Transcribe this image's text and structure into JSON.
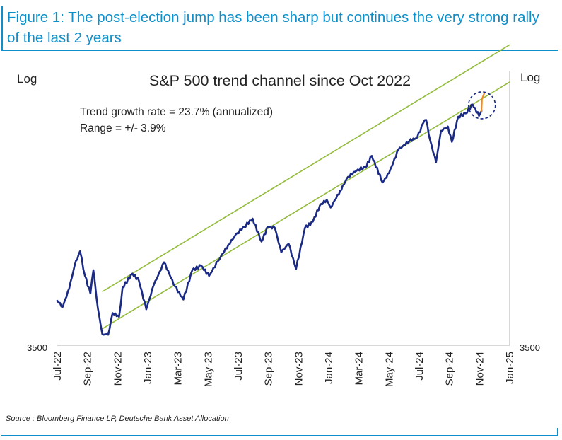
{
  "figure": {
    "title": "Figure 1: The post-election jump has been sharp but continues the very strong rally of the last 2 years",
    "source": "Source : Bloomberg Finance LP, Deutsche Bank Asset Allocation"
  },
  "chart_data": {
    "type": "line",
    "title": "S&P 500 trend channel since Oct 2022",
    "annotations": [
      "Trend growth rate = 23.7% (annualized)",
      "Range = +/- 3.9%"
    ],
    "left_axis_label": "Log",
    "right_axis_label": "Log",
    "y_scale": "log",
    "y_tick_labels": [
      "3500"
    ],
    "x_tick_labels": [
      "Jul-22",
      "Sep-22",
      "Nov-22",
      "Jan-23",
      "Mar-23",
      "May-23",
      "Jul-23",
      "Sep-23",
      "Nov-23",
      "Jan-24",
      "Mar-24",
      "May-24",
      "Jul-24",
      "Sep-24",
      "Nov-24",
      "Jan-25"
    ],
    "x_range": [
      "2022-07-01",
      "2025-01-01"
    ],
    "y_range": [
      3500,
      6300
    ],
    "grid": false,
    "series": [
      {
        "color": "#1a2a85",
        "points": [
          [
            "2022-07-01",
            3850
          ],
          [
            "2022-07-12",
            3800
          ],
          [
            "2022-07-25",
            3950
          ],
          [
            "2022-08-05",
            4150
          ],
          [
            "2022-08-16",
            4280
          ],
          [
            "2022-08-26",
            4060
          ],
          [
            "2022-09-06",
            3910
          ],
          [
            "2022-09-12",
            4110
          ],
          [
            "2022-09-21",
            3790
          ],
          [
            "2022-09-30",
            3585
          ],
          [
            "2022-10-12",
            3580
          ],
          [
            "2022-10-21",
            3750
          ],
          [
            "2022-11-03",
            3720
          ],
          [
            "2022-11-10",
            3960
          ],
          [
            "2022-11-30",
            4080
          ],
          [
            "2022-12-13",
            4020
          ],
          [
            "2022-12-28",
            3780
          ],
          [
            "2023-01-12",
            3980
          ],
          [
            "2023-02-02",
            4180
          ],
          [
            "2023-02-24",
            3970
          ],
          [
            "2023-03-13",
            3860
          ],
          [
            "2023-03-31",
            4110
          ],
          [
            "2023-04-18",
            4150
          ],
          [
            "2023-05-04",
            4060
          ],
          [
            "2023-05-22",
            4190
          ],
          [
            "2023-06-12",
            4340
          ],
          [
            "2023-06-30",
            4450
          ],
          [
            "2023-07-14",
            4510
          ],
          [
            "2023-07-31",
            4590
          ],
          [
            "2023-08-18",
            4370
          ],
          [
            "2023-08-31",
            4510
          ],
          [
            "2023-09-14",
            4500
          ],
          [
            "2023-09-27",
            4270
          ],
          [
            "2023-10-12",
            4350
          ],
          [
            "2023-10-27",
            4120
          ],
          [
            "2023-11-14",
            4500
          ],
          [
            "2023-11-30",
            4560
          ],
          [
            "2023-12-14",
            4720
          ],
          [
            "2023-12-28",
            4780
          ],
          [
            "2024-01-05",
            4700
          ],
          [
            "2024-01-24",
            4870
          ],
          [
            "2024-02-09",
            5020
          ],
          [
            "2024-02-29",
            5100
          ],
          [
            "2024-03-15",
            5120
          ],
          [
            "2024-03-28",
            5250
          ],
          [
            "2024-04-19",
            4960
          ],
          [
            "2024-05-02",
            5060
          ],
          [
            "2024-05-21",
            5320
          ],
          [
            "2024-06-12",
            5420
          ],
          [
            "2024-06-28",
            5460
          ],
          [
            "2024-07-10",
            5630
          ],
          [
            "2024-07-16",
            5670
          ],
          [
            "2024-07-24",
            5430
          ],
          [
            "2024-08-05",
            5180
          ],
          [
            "2024-08-15",
            5540
          ],
          [
            "2024-08-29",
            5590
          ],
          [
            "2024-09-06",
            5410
          ],
          [
            "2024-09-19",
            5710
          ],
          [
            "2024-10-04",
            5750
          ],
          [
            "2024-10-18",
            5860
          ],
          [
            "2024-10-31",
            5720
          ],
          [
            "2024-11-05",
            5780
          ]
        ]
      },
      {
        "color": "#f08a24",
        "points": [
          [
            "2024-11-05",
            5780
          ],
          [
            "2024-11-06",
            5930
          ],
          [
            "2024-11-11",
            6010
          ]
        ]
      }
    ],
    "trend_channel": {
      "color": "#93bb3c",
      "upper": [
        [
          "2022-09-30",
          3925
        ],
        [
          "2025-01-01",
          6660
        ]
      ],
      "lower": [
        [
          "2022-09-30",
          3625
        ],
        [
          "2025-01-01",
          6150
        ]
      ]
    },
    "highlight": {
      "type": "dashed-circle",
      "center": [
        "2024-11-03",
        5850
      ],
      "color": "#1a2a85"
    }
  }
}
